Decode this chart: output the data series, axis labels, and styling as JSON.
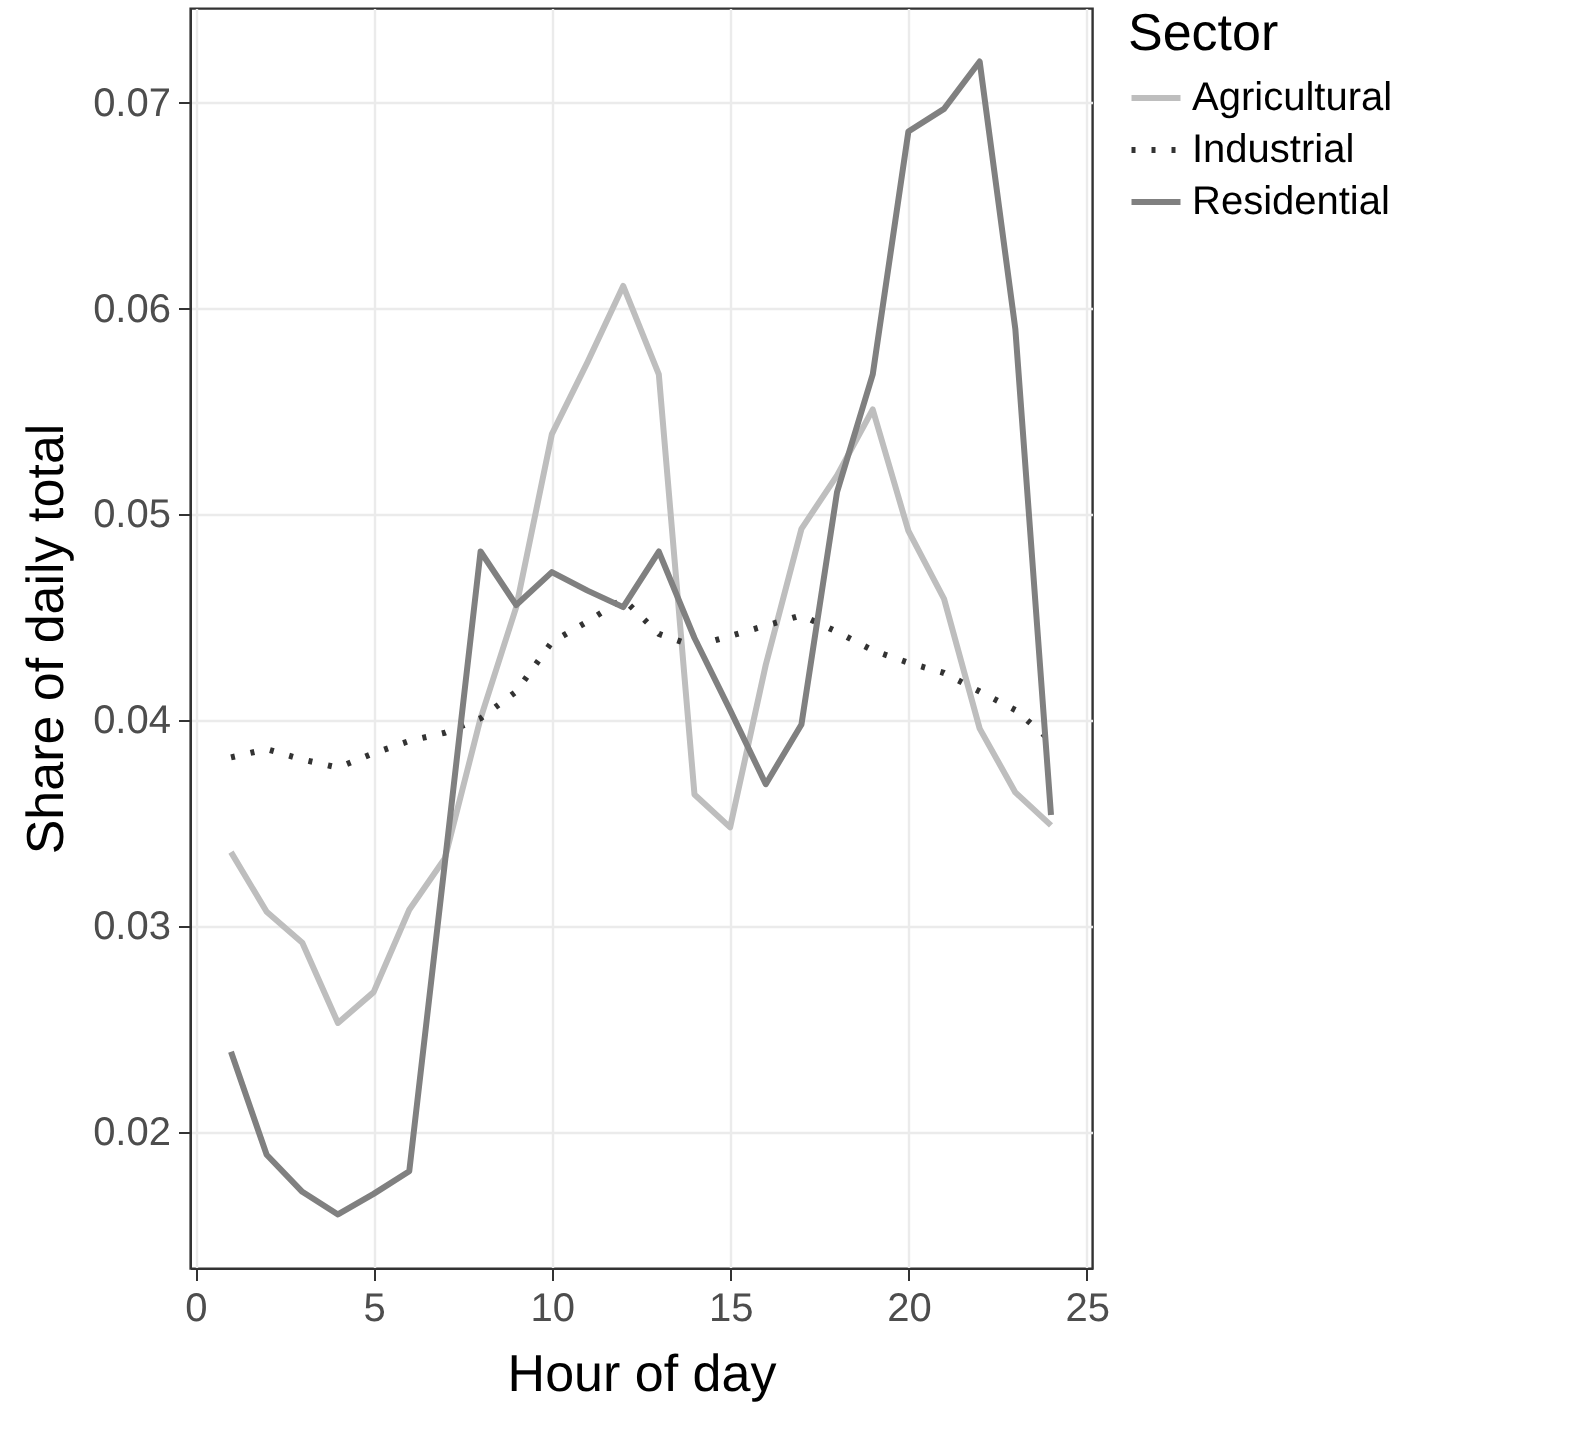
{
  "chart_data": {
    "type": "line",
    "xlabel": "Hour of day",
    "ylabel": "Share of daily total",
    "legend_title": "Sector",
    "x": [
      1,
      2,
      3,
      4,
      5,
      6,
      7,
      8,
      9,
      10,
      11,
      12,
      13,
      14,
      15,
      16,
      17,
      18,
      19,
      20,
      21,
      22,
      23,
      24
    ],
    "series": [
      {
        "name": "Agricultural",
        "color": "#bebebe",
        "line_style": "solid",
        "values": [
          0.0336,
          0.0307,
          0.0292,
          0.0253,
          0.0268,
          0.0308,
          0.0333,
          0.0401,
          0.0455,
          0.0539,
          0.0574,
          0.0611,
          0.0568,
          0.0364,
          0.0348,
          0.0427,
          0.0493,
          0.0519,
          0.0551,
          0.0492,
          0.0459,
          0.0396,
          0.0365,
          0.0349
        ]
      },
      {
        "name": "Industrial",
        "color": "#333333",
        "line_style": "dotted",
        "values": [
          0.0382,
          0.0386,
          0.0381,
          0.0377,
          0.0384,
          0.039,
          0.0394,
          0.0401,
          0.0414,
          0.0438,
          0.0448,
          0.0459,
          0.0442,
          0.0436,
          0.0441,
          0.0446,
          0.0451,
          0.0443,
          0.0434,
          0.0428,
          0.0423,
          0.0414,
          0.0405,
          0.039
        ]
      },
      {
        "name": "Residential",
        "color": "#808080",
        "line_style": "solid",
        "values": [
          0.0239,
          0.0189,
          0.0171,
          0.016,
          0.017,
          0.0181,
          0.0331,
          0.0482,
          0.0456,
          0.0472,
          0.0463,
          0.0455,
          0.0482,
          0.044,
          0.0405,
          0.0369,
          0.0398,
          0.0511,
          0.0568,
          0.0686,
          0.0697,
          0.072,
          0.059,
          0.0354
        ]
      }
    ],
    "xlim": [
      -0.15,
      25.15
    ],
    "ylim": [
      0.0134,
      0.0746
    ],
    "xticks": [
      0,
      5,
      10,
      15,
      20,
      25
    ],
    "yticks": [
      0.02,
      0.03,
      0.04,
      0.05,
      0.06,
      0.07
    ],
    "grid": true,
    "legend": "right",
    "marker": "none"
  }
}
